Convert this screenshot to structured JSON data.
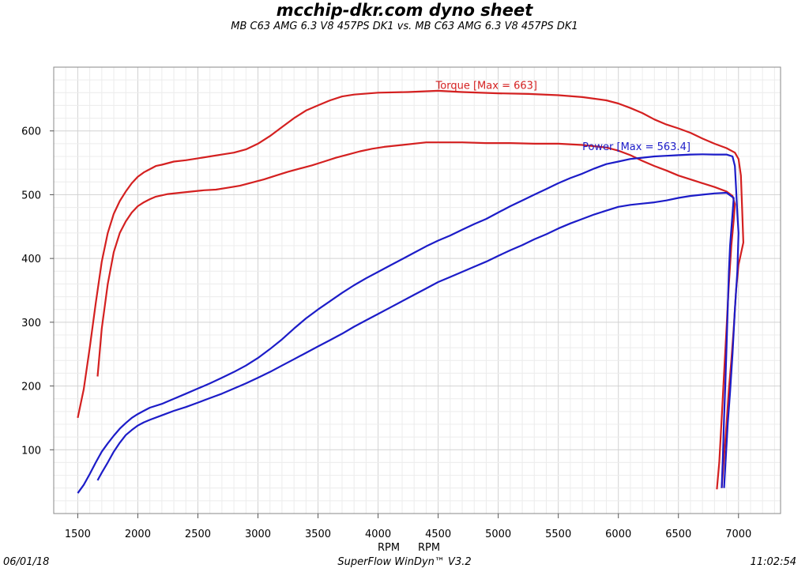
{
  "header": {
    "title": "mcchip-dkr.com dyno sheet",
    "subtitle": "MB C63 AMG 6.3 V8 457PS DK1 vs. MB C63 AMG 6.3 V8 457PS DK1"
  },
  "footer": {
    "date": "06/01/18",
    "software": "SuperFlow WinDyn™ V3.2",
    "time": "11:02:54"
  },
  "chart_data": {
    "type": "line",
    "title": "mcchip-dkr.com dyno sheet",
    "subtitle": "MB C63 AMG 6.3 V8 457PS DK1 vs. MB C63 AMG 6.3 V8 457PS DK1",
    "xlabel": "RPM   RPM",
    "xlabels": [
      "RPM",
      "RPM"
    ],
    "ylabel": "",
    "xlim": [
      1300,
      7350
    ],
    "ylim": [
      0,
      700
    ],
    "x_ticks": [
      1500,
      2000,
      2500,
      3000,
      3500,
      4000,
      4500,
      5000,
      5500,
      6000,
      6500,
      7000
    ],
    "y_ticks": [
      100,
      200,
      300,
      400,
      500,
      600
    ],
    "grid": true,
    "annotations": [
      {
        "text": "Torque [Max = 663]",
        "x": 4480,
        "y": 666,
        "color": "#d42020"
      },
      {
        "text": "Power  [Max = 563.4]",
        "x": 5700,
        "y": 570,
        "color": "#1c1cc8"
      }
    ],
    "series": [
      {
        "name": "",
        "kind": "torque",
        "color": "#d42020",
        "points": [
          [
            1500,
            150
          ],
          [
            1550,
            195
          ],
          [
            1600,
            260
          ],
          [
            1650,
            330
          ],
          [
            1700,
            395
          ],
          [
            1750,
            440
          ],
          [
            1800,
            470
          ],
          [
            1850,
            490
          ],
          [
            1900,
            505
          ],
          [
            1950,
            518
          ],
          [
            2000,
            528
          ],
          [
            2050,
            535
          ],
          [
            2100,
            540
          ],
          [
            2150,
            545
          ],
          [
            2200,
            547
          ],
          [
            2300,
            552
          ],
          [
            2400,
            554
          ],
          [
            2500,
            557
          ],
          [
            2600,
            560
          ],
          [
            2700,
            563
          ],
          [
            2800,
            566
          ],
          [
            2900,
            571
          ],
          [
            3000,
            580
          ],
          [
            3100,
            592
          ],
          [
            3200,
            606
          ],
          [
            3300,
            620
          ],
          [
            3400,
            632
          ],
          [
            3500,
            640
          ],
          [
            3600,
            648
          ],
          [
            3700,
            654
          ],
          [
            3800,
            657
          ],
          [
            4000,
            660
          ],
          [
            4250,
            661
          ],
          [
            4500,
            663
          ],
          [
            4700,
            661
          ],
          [
            5000,
            659
          ],
          [
            5250,
            658
          ],
          [
            5500,
            656
          ],
          [
            5700,
            653
          ],
          [
            5900,
            648
          ],
          [
            6000,
            643
          ],
          [
            6100,
            636
          ],
          [
            6200,
            628
          ],
          [
            6300,
            618
          ],
          [
            6400,
            610
          ],
          [
            6500,
            604
          ],
          [
            6600,
            597
          ],
          [
            6700,
            588
          ],
          [
            6800,
            580
          ],
          [
            6900,
            573
          ],
          [
            6970,
            566
          ],
          [
            7000,
            556
          ],
          [
            7020,
            530
          ],
          [
            7030,
            480
          ],
          [
            7040,
            425
          ],
          [
            7000,
            390
          ],
          [
            6980,
            350
          ],
          [
            6960,
            290
          ],
          [
            6940,
            240
          ],
          [
            6920,
            195
          ],
          [
            6900,
            140
          ],
          [
            6880,
            90
          ],
          [
            6860,
            40
          ]
        ]
      },
      {
        "name": "",
        "kind": "torque",
        "color": "#d42020",
        "points": [
          [
            1665,
            215
          ],
          [
            1700,
            290
          ],
          [
            1750,
            360
          ],
          [
            1800,
            410
          ],
          [
            1850,
            440
          ],
          [
            1900,
            458
          ],
          [
            1950,
            472
          ],
          [
            2000,
            482
          ],
          [
            2050,
            488
          ],
          [
            2100,
            493
          ],
          [
            2150,
            497
          ],
          [
            2250,
            501
          ],
          [
            2350,
            503
          ],
          [
            2450,
            505
          ],
          [
            2550,
            507
          ],
          [
            2650,
            508
          ],
          [
            2750,
            511
          ],
          [
            2850,
            514
          ],
          [
            2950,
            519
          ],
          [
            3050,
            524
          ],
          [
            3150,
            530
          ],
          [
            3250,
            536
          ],
          [
            3350,
            541
          ],
          [
            3450,
            546
          ],
          [
            3550,
            552
          ],
          [
            3650,
            558
          ],
          [
            3750,
            563
          ],
          [
            3850,
            568
          ],
          [
            3950,
            572
          ],
          [
            4050,
            575
          ],
          [
            4200,
            578
          ],
          [
            4400,
            582
          ],
          [
            4700,
            582
          ],
          [
            4900,
            581
          ],
          [
            5100,
            581
          ],
          [
            5300,
            580
          ],
          [
            5500,
            580
          ],
          [
            5700,
            578
          ],
          [
            5900,
            574
          ],
          [
            6000,
            569
          ],
          [
            6100,
            562
          ],
          [
            6200,
            553
          ],
          [
            6300,
            545
          ],
          [
            6400,
            538
          ],
          [
            6500,
            530
          ],
          [
            6600,
            524
          ],
          [
            6700,
            518
          ],
          [
            6800,
            512
          ],
          [
            6900,
            505
          ],
          [
            6950,
            498
          ],
          [
            6970,
            485
          ],
          [
            6960,
            460
          ],
          [
            6940,
            420
          ],
          [
            6920,
            360
          ],
          [
            6900,
            290
          ],
          [
            6880,
            220
          ],
          [
            6860,
            150
          ],
          [
            6840,
            80
          ],
          [
            6820,
            38
          ]
        ]
      },
      {
        "name": "",
        "kind": "power",
        "color": "#1c1cc8",
        "points": [
          [
            1500,
            32
          ],
          [
            1550,
            45
          ],
          [
            1600,
            62
          ],
          [
            1650,
            80
          ],
          [
            1700,
            97
          ],
          [
            1750,
            110
          ],
          [
            1800,
            122
          ],
          [
            1850,
            133
          ],
          [
            1900,
            142
          ],
          [
            1950,
            150
          ],
          [
            2000,
            156
          ],
          [
            2050,
            161
          ],
          [
            2100,
            166
          ],
          [
            2200,
            172
          ],
          [
            2300,
            180
          ],
          [
            2400,
            188
          ],
          [
            2500,
            196
          ],
          [
            2600,
            204
          ],
          [
            2700,
            213
          ],
          [
            2800,
            222
          ],
          [
            2900,
            232
          ],
          [
            3000,
            244
          ],
          [
            3100,
            258
          ],
          [
            3200,
            273
          ],
          [
            3300,
            290
          ],
          [
            3400,
            306
          ],
          [
            3500,
            320
          ],
          [
            3600,
            333
          ],
          [
            3700,
            346
          ],
          [
            3800,
            358
          ],
          [
            3900,
            369
          ],
          [
            4000,
            379
          ],
          [
            4100,
            389
          ],
          [
            4200,
            399
          ],
          [
            4300,
            409
          ],
          [
            4400,
            419
          ],
          [
            4500,
            428
          ],
          [
            4600,
            436
          ],
          [
            4700,
            445
          ],
          [
            4800,
            454
          ],
          [
            4900,
            462
          ],
          [
            5000,
            472
          ],
          [
            5100,
            482
          ],
          [
            5200,
            491
          ],
          [
            5300,
            500
          ],
          [
            5400,
            509
          ],
          [
            5500,
            518
          ],
          [
            5600,
            526
          ],
          [
            5700,
            533
          ],
          [
            5800,
            541
          ],
          [
            5900,
            548
          ],
          [
            6000,
            552
          ],
          [
            6100,
            556
          ],
          [
            6200,
            558
          ],
          [
            6300,
            560
          ],
          [
            6400,
            561
          ],
          [
            6500,
            562
          ],
          [
            6600,
            563
          ],
          [
            6700,
            563.4
          ],
          [
            6800,
            563
          ],
          [
            6900,
            563
          ],
          [
            6950,
            560
          ],
          [
            6970,
            545
          ],
          [
            6980,
            510
          ],
          [
            6990,
            470
          ],
          [
            7000,
            440
          ],
          [
            6990,
            380
          ],
          [
            6970,
            320
          ],
          [
            6950,
            250
          ],
          [
            6930,
            190
          ],
          [
            6910,
            140
          ],
          [
            6895,
            90
          ],
          [
            6880,
            40
          ]
        ]
      },
      {
        "name": "",
        "kind": "power",
        "color": "#1c1cc8",
        "points": [
          [
            1665,
            52
          ],
          [
            1700,
            64
          ],
          [
            1750,
            80
          ],
          [
            1800,
            97
          ],
          [
            1850,
            111
          ],
          [
            1900,
            123
          ],
          [
            1950,
            131
          ],
          [
            2000,
            138
          ],
          [
            2050,
            143
          ],
          [
            2100,
            147
          ],
          [
            2200,
            154
          ],
          [
            2300,
            161
          ],
          [
            2400,
            167
          ],
          [
            2500,
            174
          ],
          [
            2600,
            181
          ],
          [
            2700,
            188
          ],
          [
            2800,
            196
          ],
          [
            2900,
            204
          ],
          [
            3000,
            213
          ],
          [
            3100,
            222
          ],
          [
            3200,
            232
          ],
          [
            3300,
            242
          ],
          [
            3400,
            252
          ],
          [
            3500,
            262
          ],
          [
            3600,
            272
          ],
          [
            3700,
            282
          ],
          [
            3800,
            293
          ],
          [
            3900,
            303
          ],
          [
            4000,
            313
          ],
          [
            4100,
            323
          ],
          [
            4200,
            333
          ],
          [
            4300,
            343
          ],
          [
            4400,
            353
          ],
          [
            4500,
            363
          ],
          [
            4600,
            371
          ],
          [
            4700,
            379
          ],
          [
            4800,
            387
          ],
          [
            4900,
            395
          ],
          [
            5000,
            404
          ],
          [
            5100,
            413
          ],
          [
            5200,
            421
          ],
          [
            5300,
            430
          ],
          [
            5400,
            438
          ],
          [
            5500,
            447
          ],
          [
            5600,
            455
          ],
          [
            5700,
            462
          ],
          [
            5800,
            469
          ],
          [
            5900,
            475
          ],
          [
            6000,
            481
          ],
          [
            6100,
            484
          ],
          [
            6200,
            486
          ],
          [
            6300,
            488
          ],
          [
            6400,
            491
          ],
          [
            6500,
            495
          ],
          [
            6600,
            498
          ],
          [
            6700,
            500
          ],
          [
            6800,
            502
          ],
          [
            6900,
            503
          ],
          [
            6960,
            495
          ],
          [
            6950,
            470
          ],
          [
            6930,
            420
          ],
          [
            6920,
            380
          ],
          [
            6910,
            320
          ],
          [
            6900,
            260
          ],
          [
            6890,
            200
          ],
          [
            6880,
            150
          ],
          [
            6870,
            90
          ],
          [
            6860,
            40
          ]
        ]
      }
    ]
  }
}
